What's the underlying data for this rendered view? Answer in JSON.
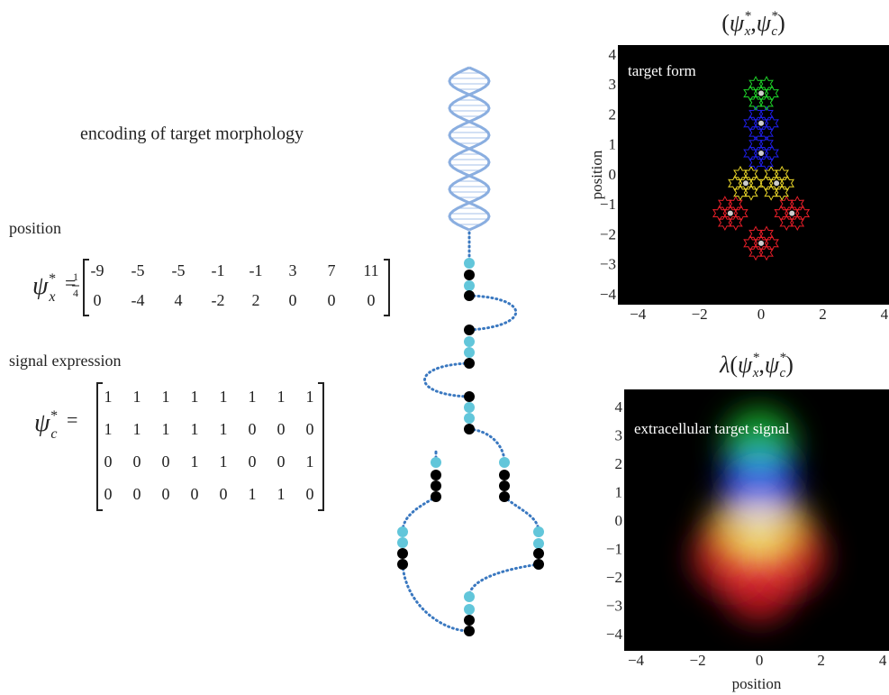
{
  "heading": "encoding of target morphology",
  "position_label": "position",
  "signal_label": "signal expression",
  "psi_x": {
    "symbol": "ψ",
    "sup": "*",
    "sub": "x",
    "equals": "=",
    "fraction": {
      "numerator": 1,
      "denominator": 4
    },
    "rows": [
      [
        -9,
        -5,
        -5,
        -1,
        -1,
        3,
        7,
        11
      ],
      [
        0,
        -4,
        4,
        -2,
        2,
        0,
        0,
        0
      ]
    ]
  },
  "psi_c": {
    "symbol": "ψ",
    "sup": "*",
    "sub": "c",
    "equals": "=",
    "rows": [
      [
        1,
        1,
        1,
        1,
        1,
        1,
        1,
        1
      ],
      [
        1,
        1,
        1,
        1,
        1,
        0,
        0,
        0
      ],
      [
        0,
        0,
        0,
        1,
        1,
        0,
        0,
        1
      ],
      [
        0,
        0,
        0,
        0,
        0,
        1,
        1,
        0
      ]
    ]
  },
  "plots": [
    {
      "title": {
        "prefix": "",
        "open": "(",
        "symbol": "ψ",
        "sup": "*",
        "sub_x": "x",
        "comma": ",",
        "sub_c": "c",
        "close": ")"
      },
      "label": "target form",
      "y_label": "position",
      "xlim": [
        -4.65,
        4.15
      ],
      "ylim": [
        -4.3,
        4.36
      ],
      "xticks": [
        {
          "value": -4,
          "label": "−4"
        },
        {
          "value": -2,
          "label": "−2"
        },
        0,
        2,
        4
      ],
      "yticks": [
        {
          "value": -4,
          "label": "−4"
        },
        {
          "value": -3,
          "label": "−3"
        },
        {
          "value": -2,
          "label": "−2"
        },
        {
          "value": -1,
          "label": "−1"
        },
        0,
        1,
        2,
        3,
        4
      ]
    },
    {
      "title": {
        "prefix": "λ",
        "open": "(",
        "symbol": "ψ",
        "sup": "*",
        "sub_x": "x",
        "comma": ",",
        "sub_c": "c",
        "close": ")"
      },
      "label": "extracellular target signal",
      "x_label": "position",
      "xlim": [
        -4.38,
        4.2
      ],
      "ylim": [
        -4.54,
        4.67
      ],
      "xticks": [
        {
          "value": -4,
          "label": "−4"
        },
        {
          "value": -2,
          "label": "−2"
        },
        0,
        2,
        4
      ],
      "yticks": [
        {
          "value": -4,
          "label": "−4"
        },
        {
          "value": -3,
          "label": "−3"
        },
        {
          "value": -2,
          "label": "−2"
        },
        {
          "value": -1,
          "label": "−1"
        },
        0,
        1,
        2,
        3,
        4
      ]
    }
  ]
}
